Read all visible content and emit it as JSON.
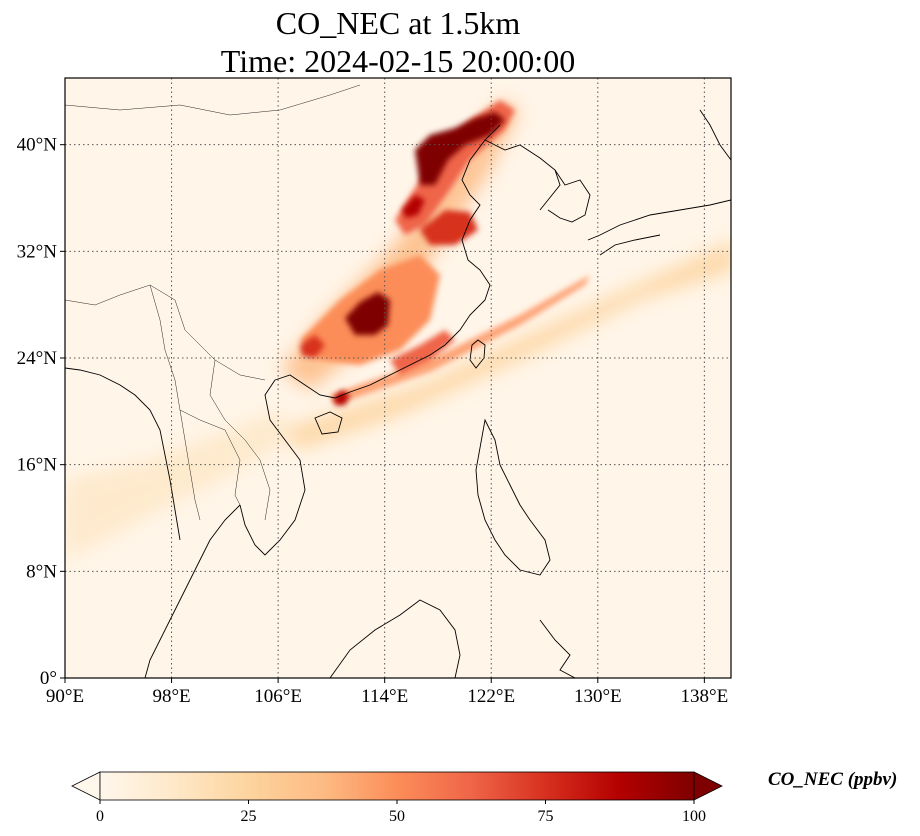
{
  "title": {
    "line1": "CO_NEC at 1.5km",
    "line2": "Time: 2024-02-15 20:00:00"
  },
  "map": {
    "variable": "CO_NEC",
    "level": "1.5km",
    "time": "2024-02-15 20:00:00",
    "lon_range": [
      90,
      140
    ],
    "lat_range": [
      0,
      45
    ],
    "gridlines": "dotted",
    "lon_ticks": [
      {
        "value": 90,
        "label": "90°E"
      },
      {
        "value": 98,
        "label": "98°E"
      },
      {
        "value": 106,
        "label": "106°E"
      },
      {
        "value": 114,
        "label": "114°E"
      },
      {
        "value": 122,
        "label": "122°E"
      },
      {
        "value": 130,
        "label": "130°E"
      },
      {
        "value": 138,
        "label": "138°E"
      }
    ],
    "lat_ticks": [
      {
        "value": 0,
        "label": "0°"
      },
      {
        "value": 8,
        "label": "8°N"
      },
      {
        "value": 16,
        "label": "16°N"
      },
      {
        "value": 24,
        "label": "24°N"
      },
      {
        "value": 32,
        "label": "32°N"
      },
      {
        "value": 40,
        "label": "40°N"
      }
    ],
    "plume_hotspots": [
      {
        "lon": 117.5,
        "lat": 40.5,
        "value": 100
      },
      {
        "lon": 119.5,
        "lat": 41.2,
        "value": 100
      },
      {
        "lon": 116.2,
        "lat": 38.2,
        "value": 100
      },
      {
        "lon": 113.5,
        "lat": 27.8,
        "value": 100
      },
      {
        "lon": 112.0,
        "lat": 26.8,
        "value": 95
      },
      {
        "lon": 110.2,
        "lat": 21.3,
        "value": 90
      },
      {
        "lon": 118.5,
        "lat": 33.5,
        "value": 70
      },
      {
        "lon": 115.5,
        "lat": 25.0,
        "value": 70
      },
      {
        "lon": 108.5,
        "lat": 25.0,
        "value": 55
      },
      {
        "lon": 124.0,
        "lat": 28.0,
        "value": 45
      },
      {
        "lon": 128.0,
        "lat": 29.5,
        "value": 35
      },
      {
        "lon": 93.0,
        "lat": 13.0,
        "value": 20
      }
    ],
    "colormap": "OrRd",
    "colors": [
      "#fff7ec",
      "#fee8c8",
      "#fdd49e",
      "#fdbb84",
      "#fc8d59",
      "#ef6548",
      "#d7301f",
      "#b30000",
      "#7f0000"
    ]
  },
  "colorbar": {
    "label": "CO_NEC (ppbv)",
    "min": 0,
    "max": 100,
    "extend": "both",
    "ticks": [
      {
        "value": 0,
        "label": "0"
      },
      {
        "value": 25,
        "label": "25"
      },
      {
        "value": 50,
        "label": "50"
      },
      {
        "value": 75,
        "label": "75"
      },
      {
        "value": 100,
        "label": "100"
      }
    ]
  }
}
